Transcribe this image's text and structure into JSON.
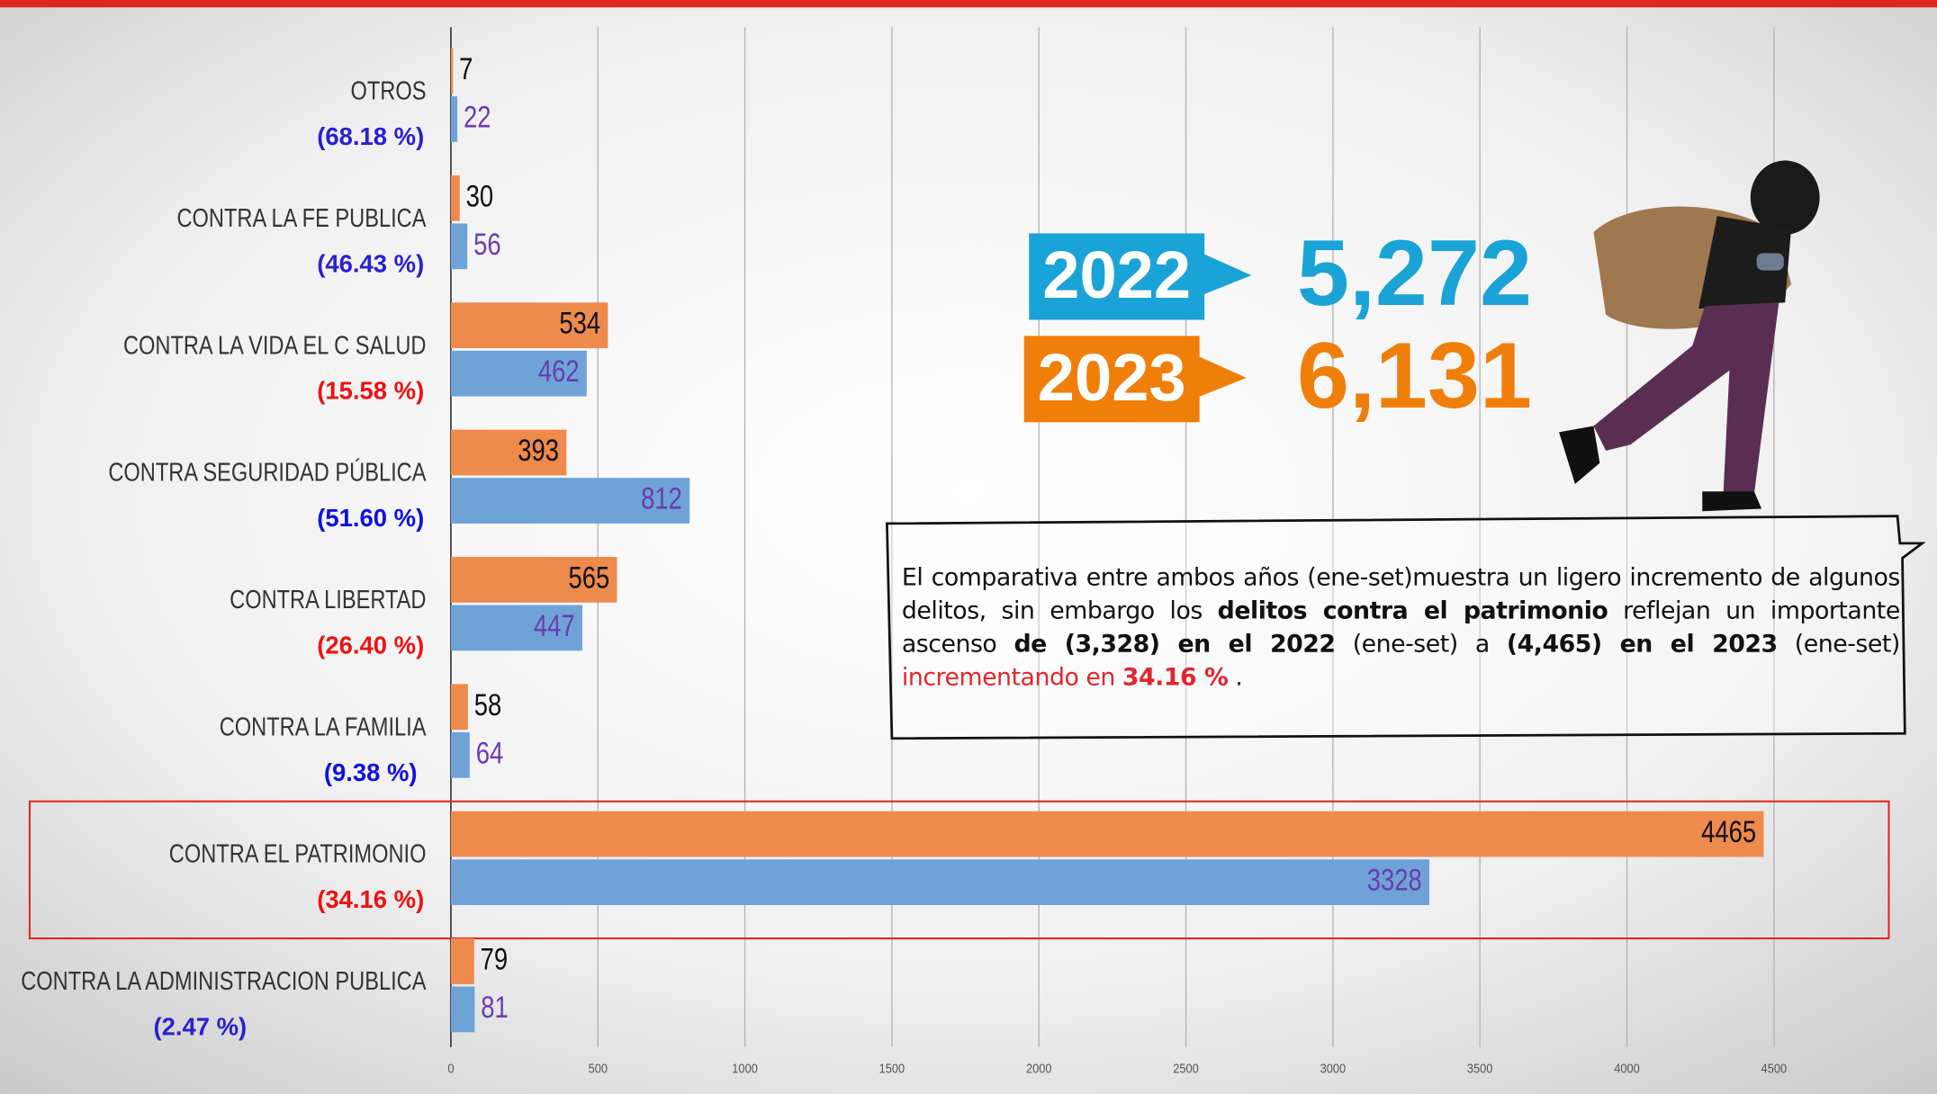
{
  "chart_data": {
    "type": "hbar",
    "categories": [
      "OTROS",
      "CONTRA LA FE PUBLICA",
      "CONTRA LA VIDA EL C SALUD",
      "CONTRA SEGURIDAD PÚBLICA",
      "CONTRA LIBERTAD",
      "CONTRA LA FAMILIA",
      "CONTRA EL PATRIMONIO",
      "CONTRA LA ADMINISTRACION PUBLICA"
    ],
    "annotations": [
      "(68.18 %)",
      "(46.43 %)",
      "(15.58 %)",
      "(51.60 %)",
      "(26.40 %)",
      "(9.38 %)",
      "(34.16 %)",
      "(2.47 %)"
    ],
    "annotation_colors": [
      "#2a1fd0",
      "#2a1fd0",
      "#f01010",
      "#1010e0",
      "#f01010",
      "#1010e0",
      "#f01010",
      "#2a1fd0"
    ],
    "series": [
      {
        "name": "2023",
        "color": "#ee8a4c",
        "label_color": "#111111",
        "values": [
          7,
          30,
          534,
          393,
          565,
          58,
          4465,
          79
        ]
      },
      {
        "name": "2022",
        "color": "#6fa3d8",
        "label_color": "#6a3cb0",
        "values": [
          22,
          56,
          462,
          812,
          447,
          64,
          3328,
          81
        ]
      }
    ],
    "xlim": [
      0,
      5000
    ],
    "xticks": [
      0,
      500,
      1000,
      1500,
      2000,
      2500,
      3000,
      3500,
      4000,
      4500
    ],
    "grid": true,
    "highlight_index": 6,
    "summary": [
      {
        "name": "2022",
        "total": "5,272",
        "color": "#1aa3d6"
      },
      {
        "name": "2023",
        "total": "6,131",
        "color": "#f07f0a"
      }
    ],
    "note": [
      {
        "text": "El comparativa entre ambos años (ene-set)muestra un ligero incremento de algunos delitos, sin embargo los ",
        "style": "normal"
      },
      {
        "text": "delitos contra el patrimonio",
        "style": "bold"
      },
      {
        "text": " reflejan un importante ascenso ",
        "style": "normal"
      },
      {
        "text": "de (3,328)  en el 2022",
        "style": "bold"
      },
      {
        "text": " (ene-set) a ",
        "style": "normal"
      },
      {
        "text": "(4,465) en el 2023",
        "style": "bold"
      },
      {
        "text": " (ene-set) ",
        "style": "normal"
      },
      {
        "text": "incrementando en ",
        "style": "red"
      },
      {
        "text": "34.16 %",
        "style": "redbold"
      },
      {
        "text": " .",
        "style": "normal"
      }
    ]
  }
}
